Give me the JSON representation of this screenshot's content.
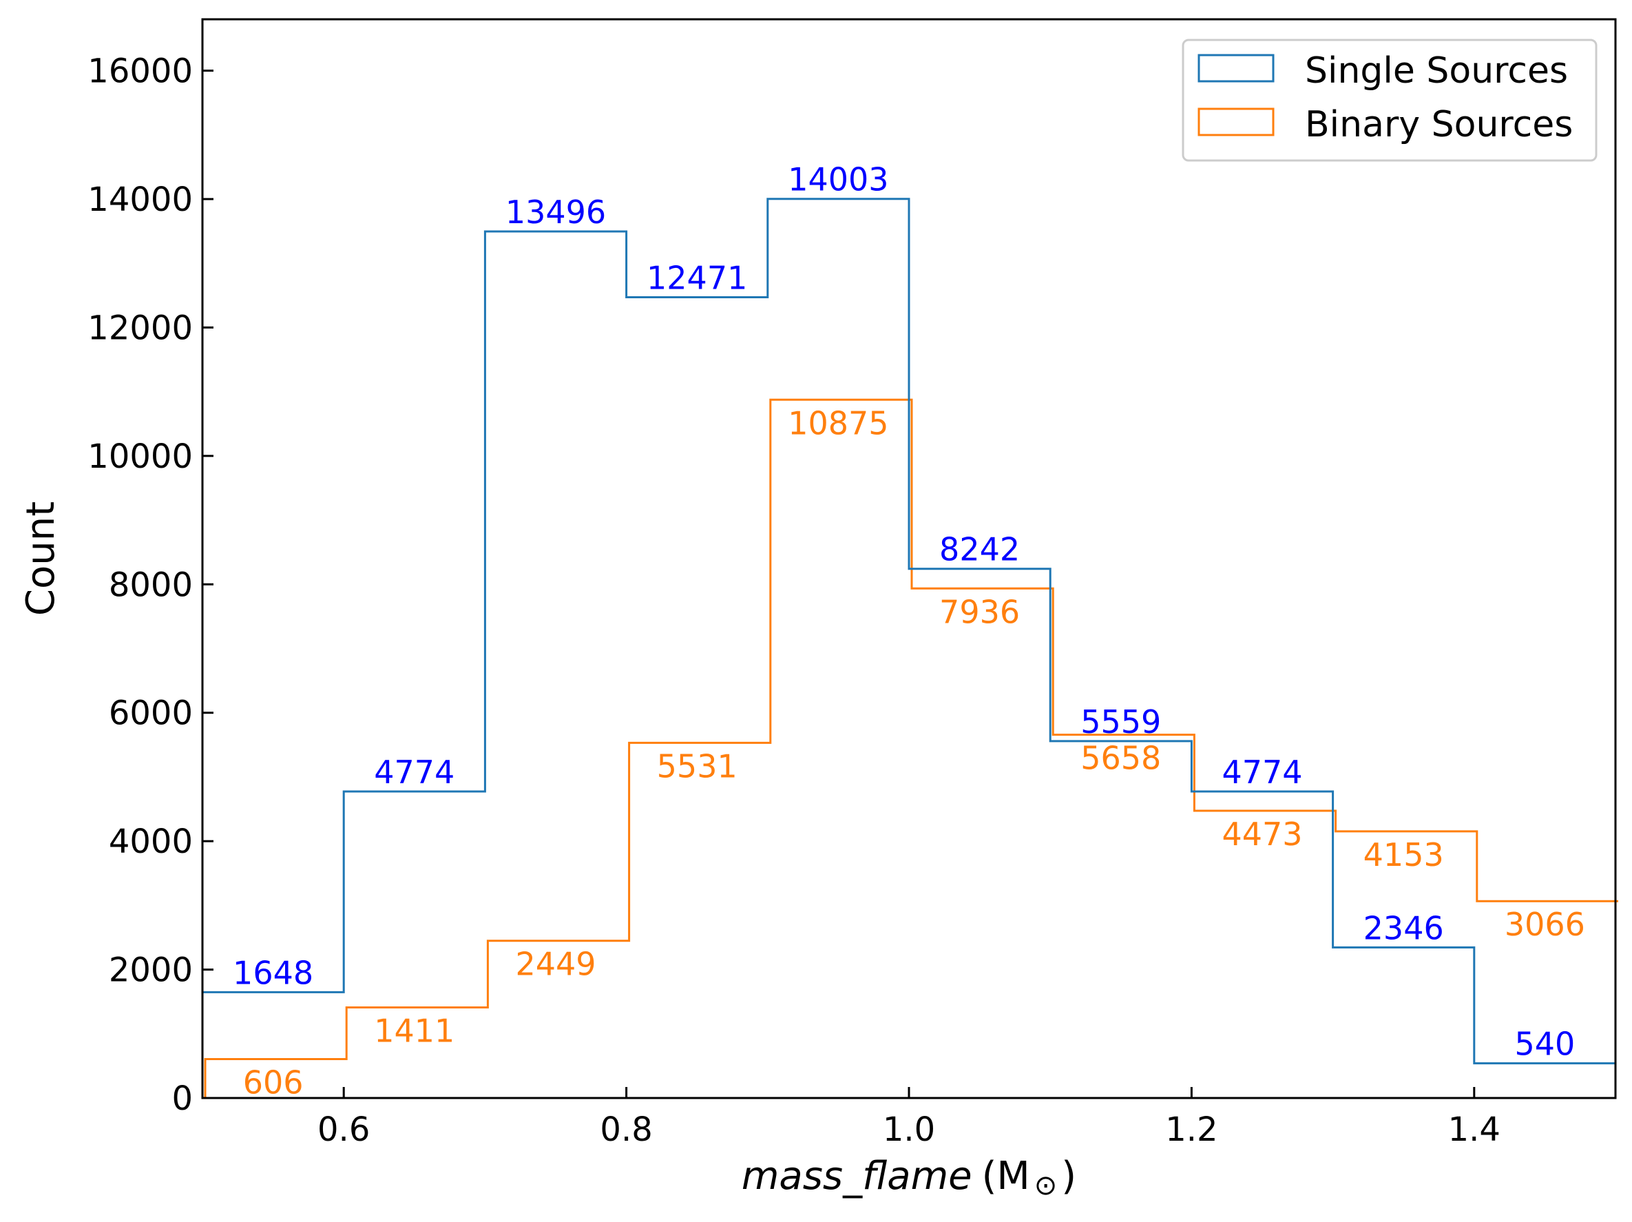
{
  "chart_data": {
    "type": "histogram-step",
    "title": "",
    "xlabel": "mass_flame",
    "xlabel_unit": "(M",
    "xlabel_unit_symbol": "⊙",
    "xlabel_unit_close": ")",
    "ylabel": "Count",
    "xlim": [
      0.5,
      1.5
    ],
    "ylim": [
      0,
      16800
    ],
    "bin_edges": [
      0.5,
      0.6,
      0.7,
      0.8,
      0.9,
      1.0,
      1.1,
      1.2,
      1.3,
      1.4,
      1.5
    ],
    "x_ticks": [
      0.6,
      0.8,
      1.0,
      1.2,
      1.4
    ],
    "x_tick_labels": [
      "0.6",
      "0.8",
      "1.0",
      "1.2",
      "1.4"
    ],
    "y_ticks": [
      0,
      2000,
      4000,
      6000,
      8000,
      10000,
      12000,
      14000,
      16000
    ],
    "y_tick_labels": [
      "0",
      "2000",
      "4000",
      "6000",
      "8000",
      "10000",
      "12000",
      "14000",
      "16000"
    ],
    "legend_position": "top-right",
    "series": [
      {
        "name": "Single Sources",
        "line_color": "#1f77b4",
        "label_color": "#0000ff",
        "label_placement": "above",
        "values": [
          1648,
          4774,
          13496,
          12471,
          14003,
          8242,
          5559,
          4774,
          2346,
          540
        ],
        "value_labels": [
          "1648",
          "4774",
          "13496",
          "12471",
          "14003",
          "8242",
          "5559",
          "4774",
          "2346",
          "540"
        ]
      },
      {
        "name": "Binary Sources",
        "line_color": "#ff7f0e",
        "label_color": "#ff7f0e",
        "label_placement": "below",
        "values": [
          606,
          1411,
          2449,
          5531,
          10875,
          7936,
          5658,
          4473,
          4153,
          3066
        ],
        "value_labels": [
          "606",
          "1411",
          "2449",
          "5531",
          "10875",
          "7936",
          "5658",
          "4473",
          "4153",
          "3066"
        ]
      }
    ]
  }
}
